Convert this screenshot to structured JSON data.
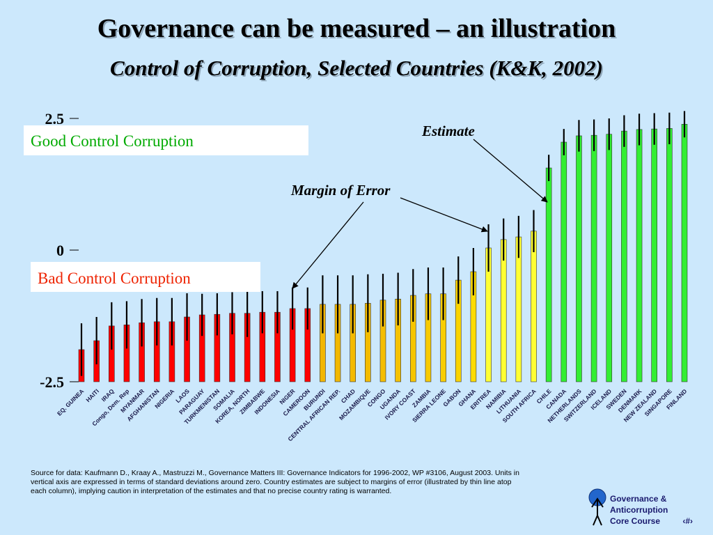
{
  "chart_data": {
    "type": "bar",
    "title": "Governance can be measured – an illustration",
    "subtitle": "Control of Corruption, Selected Countries (K&K, 2002)",
    "categories": [
      "EQ. GUINEA",
      "HAITI",
      "IRAQ",
      "Congo, Dem. Rep",
      "MYANMAR",
      "AFGHANISTAN",
      "NIGERIA",
      "LAOS",
      "PARAGUAY",
      "TURKMENISTAN",
      "SOMALIA",
      "KOREA, NORTH",
      "ZIMBABWE",
      "INDONESIA",
      "NIGER",
      "CAMEROON",
      "BURUNDI",
      "CENTRAL AFRICAN REP.",
      "CHAD",
      "MOZAMBIQUE",
      "CONGO",
      "UGANDA",
      "IVORY COAST",
      "ZAMBIA",
      "SIERRA LEONE",
      "GABON",
      "GHANA",
      "ERITREA",
      "NAMIBIA",
      "LITHUANIA",
      "SOUTH AFRICA",
      "CHILE",
      "CANADA",
      "NETHERLANDS",
      "SWITZERLAND",
      "ICELAND",
      "SWEDEN",
      "DENMARK",
      "NEW ZEALAND",
      "SINGAPORE",
      "FINLAND"
    ],
    "values": [
      -1.89,
      -1.72,
      -1.44,
      -1.42,
      -1.38,
      -1.36,
      -1.36,
      -1.27,
      -1.23,
      -1.22,
      -1.2,
      -1.2,
      -1.18,
      -1.18,
      -1.11,
      -1.11,
      -1.03,
      -1.03,
      -1.03,
      -1.01,
      -0.95,
      -0.93,
      -0.86,
      -0.83,
      -0.83,
      -0.57,
      -0.41,
      0.04,
      0.2,
      0.25,
      0.36,
      1.56,
      2.05,
      2.17,
      2.18,
      2.2,
      2.26,
      2.29,
      2.3,
      2.31,
      2.39
    ],
    "errors": [
      0.5,
      0.45,
      0.45,
      0.45,
      0.45,
      0.45,
      0.45,
      0.45,
      0.4,
      0.4,
      0.4,
      0.45,
      0.4,
      0.4,
      0.4,
      0.4,
      0.55,
      0.55,
      0.55,
      0.55,
      0.5,
      0.5,
      0.5,
      0.5,
      0.5,
      0.45,
      0.45,
      0.45,
      0.4,
      0.4,
      0.4,
      0.25,
      0.25,
      0.3,
      0.3,
      0.3,
      0.3,
      0.3,
      0.3,
      0.3,
      0.25
    ],
    "colors": [
      "#ff0000",
      "#ff0000",
      "#ff0000",
      "#ff0000",
      "#ff0000",
      "#ff0000",
      "#ff0000",
      "#ff0000",
      "#ff0000",
      "#ff0000",
      "#ff0000",
      "#ff0000",
      "#ff0000",
      "#ff0000",
      "#ff0000",
      "#ff0000",
      "#f2b600",
      "#f2b800",
      "#f3ba00",
      "#f3bc00",
      "#f4be00",
      "#f5c200",
      "#f6c600",
      "#f7ca00",
      "#f8ce00",
      "#fad400",
      "#fcdc00",
      "#ffff33",
      "#ffff33",
      "#ffff33",
      "#ffff33",
      "#33ee33",
      "#33ee33",
      "#33ee33",
      "#33ee33",
      "#33ee33",
      "#33ee33",
      "#33ee33",
      "#33ee33",
      "#33ee33",
      "#33ee33"
    ],
    "ylim": [
      -2.5,
      2.5
    ],
    "yticks": [
      -2.5,
      0,
      2.5
    ],
    "annotations": {
      "good": "Good Control Corruption",
      "bad": "Bad Control Corruption",
      "estimate": "Estimate",
      "margin": "Margin of Error"
    }
  },
  "footer": {
    "source": [
      "Source for data: Kaufmann D., Kraay A., Mastruzzi M., Governance Matters III:  Governance  Indicators for 1996-2002, WP #3106, August 2003. Units in",
      "vertical axis are expressed in terms of standard deviations around zero.  Country estimates are subject to margins of error (illustrated by thin line atop",
      "each column), implying caution in interpretation of the estimates and that no precise country rating is warranted."
    ],
    "logo": [
      "Governance &",
      "Anticorruption",
      "Core Course",
      "‹#›"
    ]
  }
}
